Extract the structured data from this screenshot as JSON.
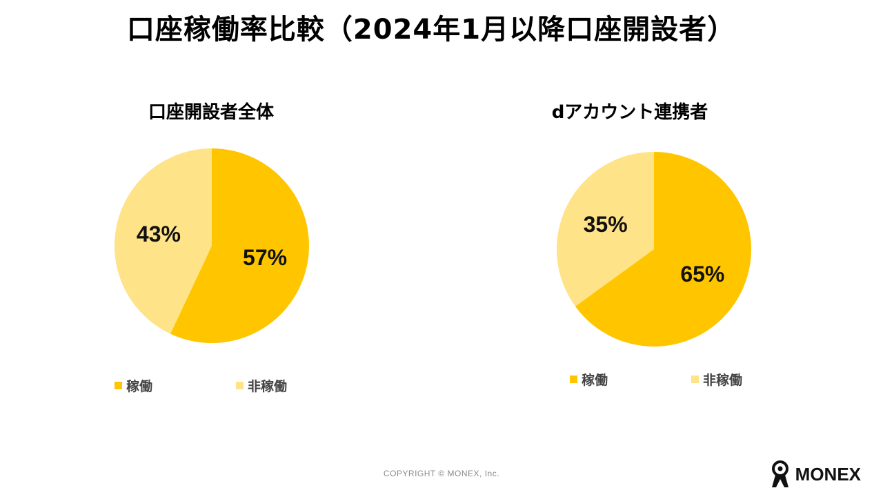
{
  "page": {
    "title": "口座稼働率比較（2024年1月以降口座開設者）",
    "copyright": "COPYRIGHT © MONEX, Inc.",
    "brand": "MONEX"
  },
  "colors": {
    "active": "#FFC600",
    "inactive": "#FFE388"
  },
  "chart_data": [
    {
      "type": "pie",
      "title": "口座開設者全体",
      "labels": [
        "稼働",
        "非稼働"
      ],
      "values": [
        57,
        43
      ],
      "value_labels": [
        "57%",
        "43%"
      ],
      "legend": "bottom"
    },
    {
      "type": "pie",
      "title": "dアカウント連携者",
      "labels": [
        "稼働",
        "非稼働"
      ],
      "values": [
        65,
        35
      ],
      "value_labels": [
        "65%",
        "35%"
      ],
      "legend": "bottom"
    }
  ]
}
